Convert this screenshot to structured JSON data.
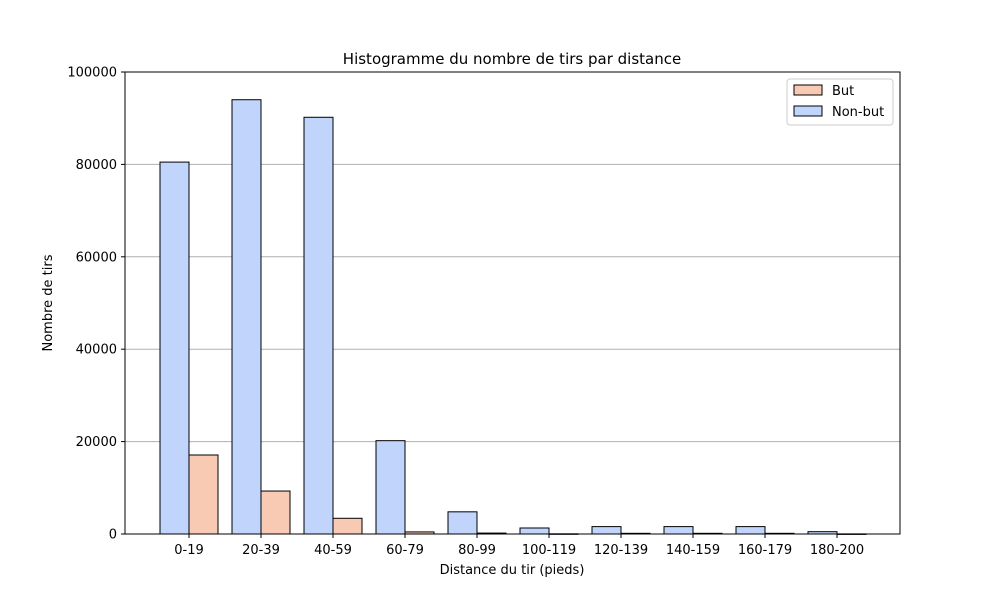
{
  "chart_data": {
    "type": "bar",
    "title": "Histogramme du nombre de tirs par distance",
    "xlabel": "Distance du tir (pieds)",
    "ylabel": "Nombre de tirs",
    "categories": [
      "0-19",
      "20-39",
      "40-59",
      "60-79",
      "80-99",
      "100-119",
      "120-139",
      "140-159",
      "160-179",
      "180-200"
    ],
    "series": [
      {
        "name": "Non-but",
        "color": "#c0d4fc",
        "values": [
          80500,
          94000,
          90200,
          20200,
          4800,
          1300,
          1600,
          1600,
          1600,
          500
        ]
      },
      {
        "name": "But",
        "color": "#f8cab4",
        "values": [
          17100,
          9300,
          3400,
          450,
          200,
          40,
          150,
          150,
          150,
          20
        ]
      }
    ],
    "legend_order": [
      "But",
      "Non-but"
    ],
    "legend_position": "top-right",
    "ylim": [
      0,
      100000
    ],
    "yticks": [
      0,
      20000,
      40000,
      60000,
      80000,
      100000
    ],
    "grid": "horizontal"
  }
}
